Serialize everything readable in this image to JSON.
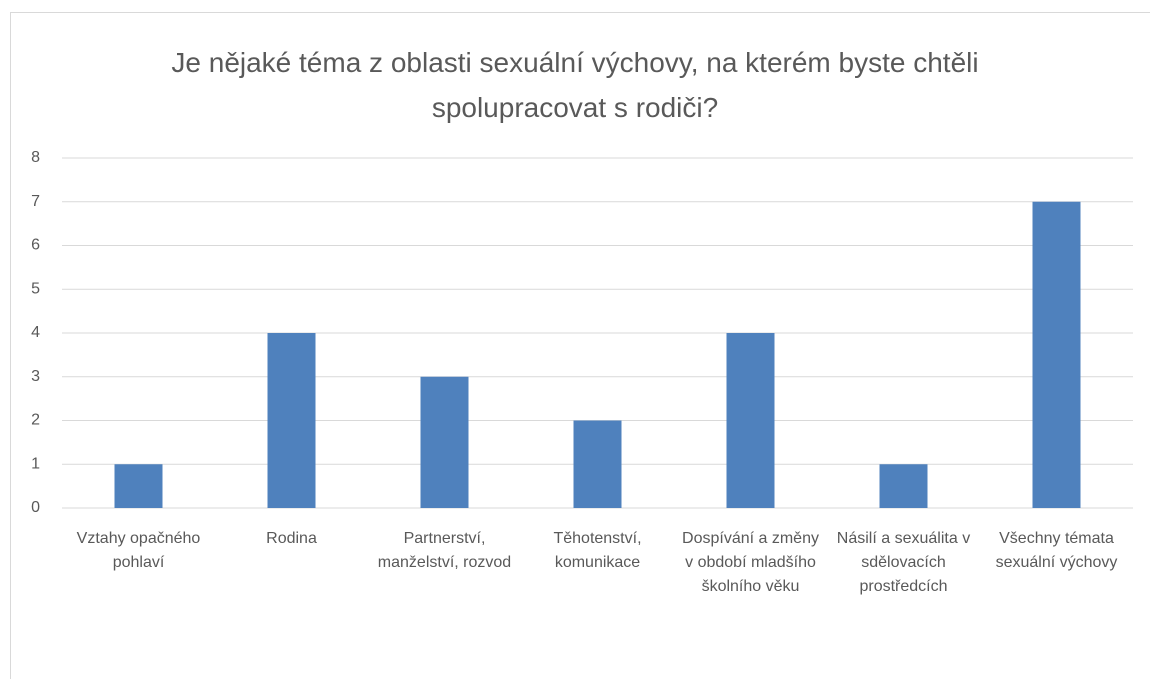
{
  "chart_data": {
    "type": "bar",
    "title": "Je nějaké téma z oblasti sexuální výchovy, na kterém byste chtěli spolupracovat s rodiči?",
    "categories": [
      "Vztahy opačného pohlaví",
      "Rodina",
      "Partnerství, manželství, rozvod",
      "Těhotenství, komunikace",
      "Dospívání a změny v období mladšího školního věku",
      "Násilí a sexuálita v sdělovacích prostředcích",
      "Všechny témata sexuální výchovy"
    ],
    "values": [
      1,
      4,
      3,
      2,
      4,
      1,
      7
    ],
    "color": "#4f81bd",
    "ylim": [
      0,
      8
    ],
    "yticks": [
      0,
      1,
      2,
      3,
      4,
      5,
      6,
      7,
      8
    ],
    "grid": true
  }
}
